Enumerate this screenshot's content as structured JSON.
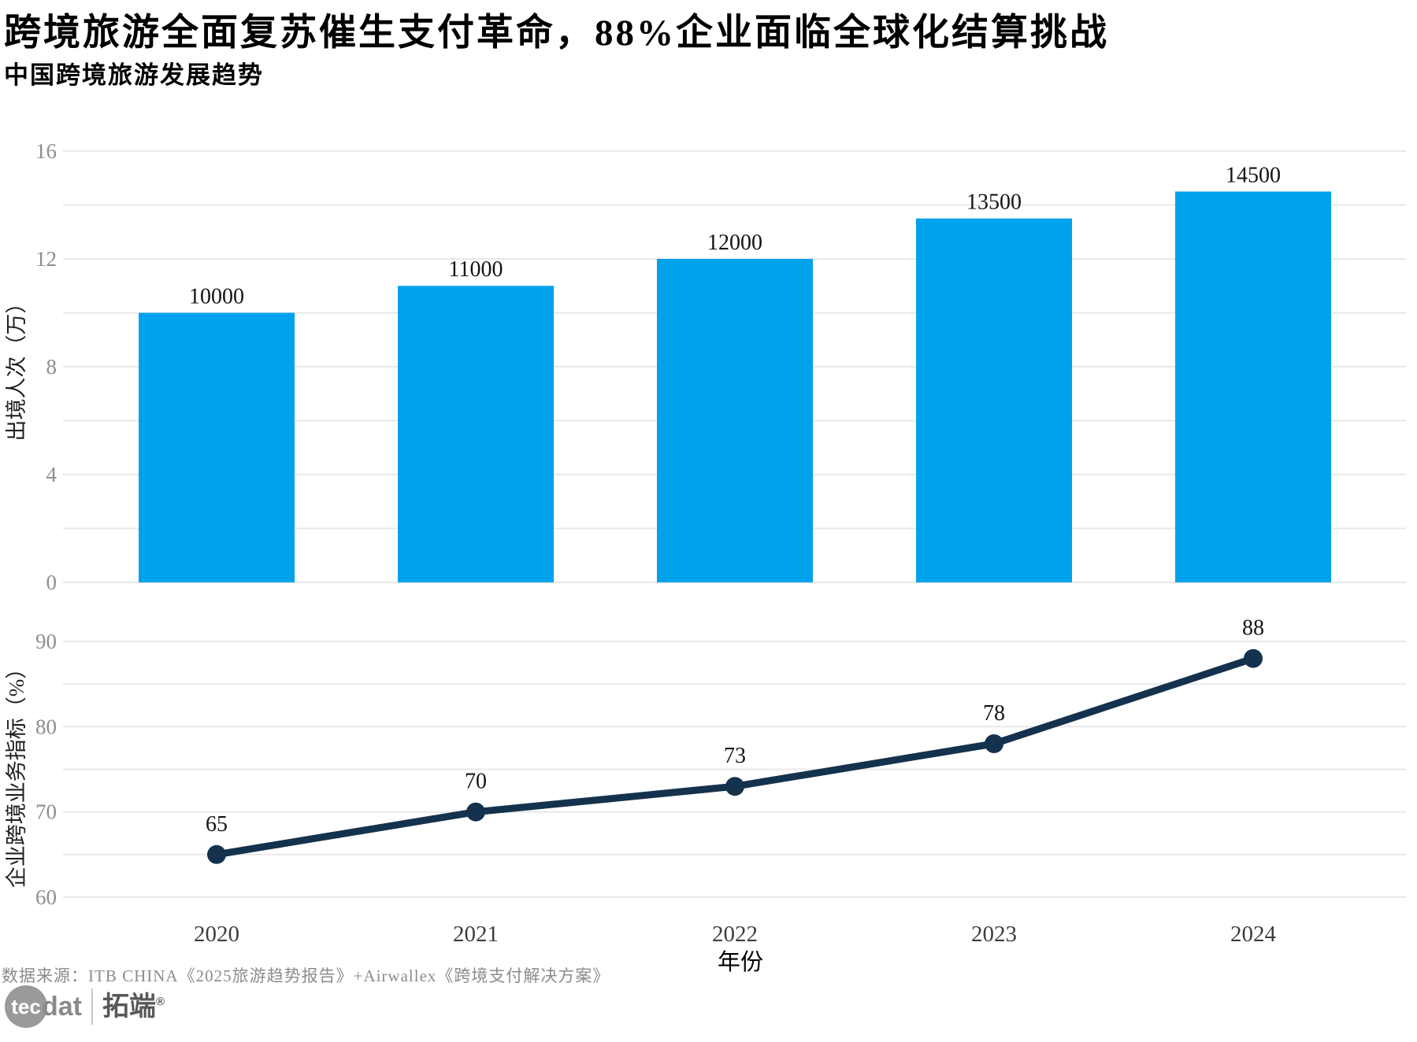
{
  "header": {
    "title": "跨境旅游全面复苏催生支付革命，88%企业面临全球化结算挑战",
    "subtitle": "中国跨境旅游发展趋势"
  },
  "chart_data": [
    {
      "type": "bar",
      "title": "中国跨境旅游发展趋势",
      "categories": [
        "2020",
        "2021",
        "2022",
        "2023",
        "2024"
      ],
      "values": [
        10000,
        11000,
        12000,
        13500,
        14500
      ],
      "value_labels": [
        "10000",
        "11000",
        "12000",
        "13500",
        "14500"
      ],
      "xlabel": "",
      "ylabel": "出境人次（万）",
      "ylim": [
        0,
        16000
      ],
      "yticks": [
        0,
        4000,
        8000,
        12000,
        16000
      ],
      "ytick_labels": [
        "0",
        "4",
        "8",
        "12",
        "16"
      ],
      "grid_step": 2000,
      "grid": true,
      "legend_position": "none",
      "bar_color": "#00A2EC"
    },
    {
      "type": "line",
      "title": "",
      "categories": [
        "2020",
        "2021",
        "2022",
        "2023",
        "2024"
      ],
      "values": [
        65,
        70,
        73,
        78,
        88
      ],
      "value_labels": [
        "65",
        "70",
        "73",
        "78",
        "88"
      ],
      "xlabel": "年份",
      "ylabel": "企业跨境业务指标（%）",
      "ylim": [
        60,
        90
      ],
      "yticks": [
        60,
        70,
        80,
        90
      ],
      "ytick_labels": [
        "60",
        "70",
        "80",
        "90"
      ],
      "grid_step": 5,
      "grid": true,
      "legend_position": "none",
      "line_color": "#14324D",
      "marker": "circle"
    }
  ],
  "colors": {
    "bar": "#00A2EC",
    "line": "#14324D",
    "grid": "#e8e8e8",
    "tick_label": "#8e8e8e",
    "year_label": "#3d3d3d",
    "value_label": "#141414",
    "axis_title": "#1f1f1f"
  },
  "footer": {
    "source": "数据来源：ITB CHINA《2025旅游趋势报告》+Airwallex《跨境支付解决方案》",
    "logo": {
      "brand_tec": "tec",
      "brand_dat": "dat",
      "cn": "拓端",
      "reg": "®"
    }
  }
}
